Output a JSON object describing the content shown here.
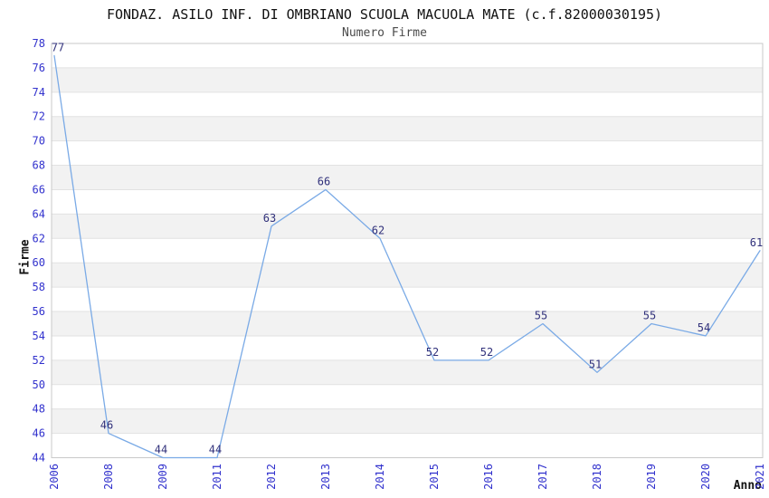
{
  "chart_data": {
    "type": "line",
    "title": "FONDAZ. ASILO INF. DI OMBRIANO SCUOLA MACUOLA MATE (c.f.82000030195)",
    "subtitle": "Numero Firme",
    "xlabel": "Anno",
    "ylabel": "Firme",
    "categories": [
      "2006",
      "2008",
      "2009",
      "2011",
      "2012",
      "2013",
      "2014",
      "2015",
      "2016",
      "2017",
      "2018",
      "2019",
      "2020",
      "2021"
    ],
    "values": [
      77,
      46,
      44,
      44,
      63,
      66,
      62,
      52,
      52,
      55,
      51,
      55,
      54,
      61
    ],
    "point_labels": [
      "77",
      "46",
      "44",
      "44",
      "63",
      "66",
      "62",
      "52",
      "52",
      "55",
      "51",
      "55",
      "54",
      "61"
    ],
    "ylim": [
      44,
      78
    ],
    "ytick_step": 2,
    "grid": "horizontal-bands-alternating",
    "legend": "none",
    "colors": {
      "line": "#7aaae6",
      "data_label": "#31317b",
      "tick_label": "#3232cd",
      "title": "#111111",
      "subtitle": "#4a4a4a",
      "axis_title": "#111111",
      "band": "#f2f2f2",
      "gridline": "#e2e2e2",
      "border": "#c9c9c9",
      "background": "#ffffff"
    }
  }
}
